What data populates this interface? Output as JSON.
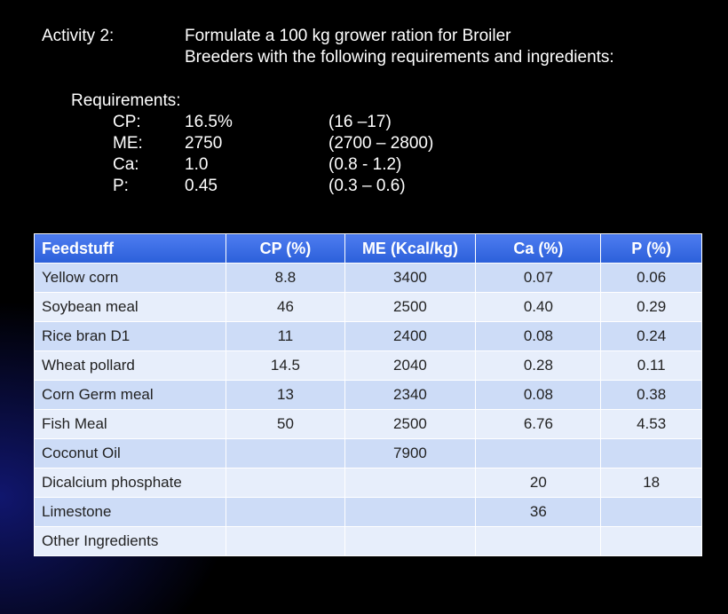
{
  "header": {
    "label": "Activity 2:",
    "title_lines": [
      "Formulate a 100 kg grower ration for Broiler",
      "Breeders with the following requirements and ingredients:"
    ]
  },
  "requirements": {
    "label": "Requirements:",
    "rows": [
      [
        "CP:",
        "16.5%",
        "(16 –17)"
      ],
      [
        "ME:",
        "2750",
        "(2700 – 2800)"
      ],
      [
        "Ca:",
        "1.0",
        "(0.8 - 1.2)"
      ],
      [
        "P:",
        "0.45",
        "(0.3 – 0.6)"
      ]
    ]
  },
  "table": {
    "columns": [
      "Feedstuff",
      "CP (%)",
      "ME (Kcal/kg)",
      "Ca (%)",
      "P (%)"
    ],
    "rows": [
      [
        "Yellow corn",
        "8.8",
        "3400",
        "0.07",
        "0.06"
      ],
      [
        "Soybean meal",
        "46",
        "2500",
        "0.40",
        "0.29"
      ],
      [
        "Rice bran D1",
        "11",
        "2400",
        "0.08",
        "0.24"
      ],
      [
        "Wheat pollard",
        "14.5",
        "2040",
        "0.28",
        "0.11"
      ],
      [
        "Corn Germ meal",
        "13",
        "2340",
        "0.08",
        "0.38"
      ],
      [
        "Fish Meal",
        "50",
        "2500",
        "6.76",
        "4.53"
      ],
      [
        "Coconut Oil",
        null,
        "7900",
        null,
        null
      ],
      [
        "Dicalcium phosphate",
        null,
        null,
        "20",
        "18"
      ],
      [
        "Limestone",
        null,
        null,
        "36",
        null
      ],
      [
        "Other Ingredients",
        null,
        null,
        null,
        null
      ]
    ]
  }
}
